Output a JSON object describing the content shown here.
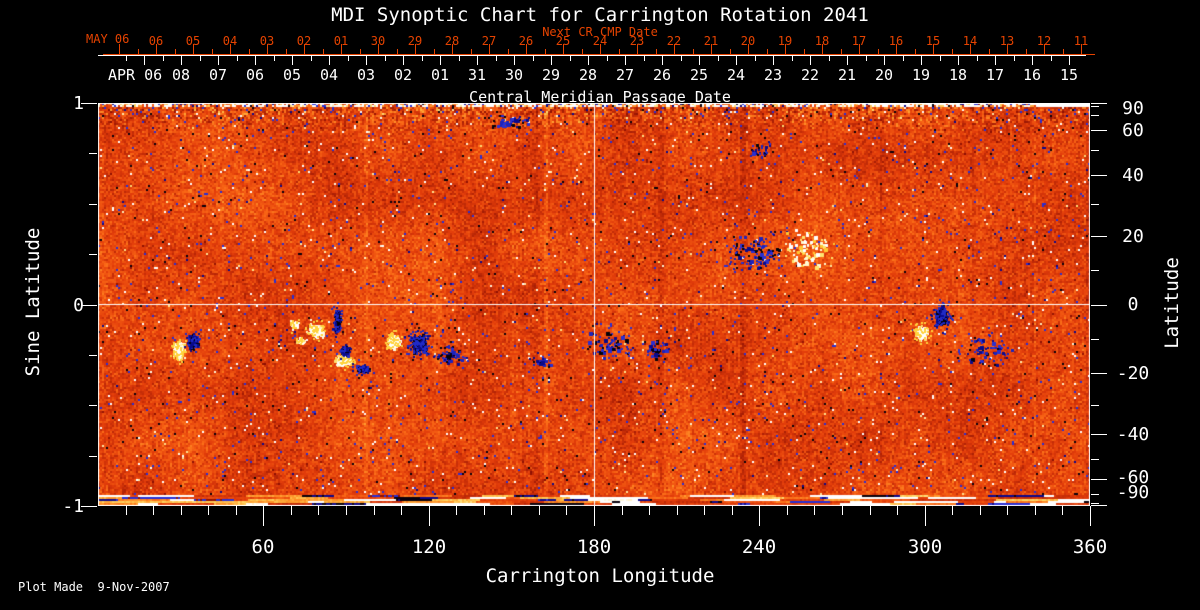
{
  "title": "MDI Synoptic Chart for Carrington Rotation 2041",
  "footer": {
    "plot_made": "Plot Made  9-Nov-2007"
  },
  "colors": {
    "background": "#000000",
    "axis_white": "#ffffff",
    "axis_red": "#e64300"
  },
  "next_cr_axis": {
    "label": "Next CR CMP Date",
    "month_label": "MAY 06",
    "days": [
      "06",
      "05",
      "04",
      "03",
      "02",
      "01",
      "30",
      "29",
      "28",
      "27",
      "26",
      "25",
      "24",
      "23",
      "22",
      "21",
      "20",
      "19",
      "18",
      "17",
      "16",
      "15",
      "14",
      "13",
      "12",
      "11"
    ]
  },
  "cmp_axis": {
    "label": "Central Meridian Passage Date",
    "month_label": "APR 06",
    "days": [
      "08",
      "07",
      "06",
      "05",
      "04",
      "03",
      "02",
      "01",
      "31",
      "30",
      "29",
      "28",
      "27",
      "26",
      "25",
      "24",
      "23",
      "22",
      "21",
      "20",
      "19",
      "18",
      "17",
      "16",
      "15"
    ]
  },
  "left_axis": {
    "label": "Sine Latitude",
    "ticks": [
      "1",
      "0",
      "-1"
    ]
  },
  "right_axis": {
    "label": "Latitude",
    "ticks": [
      "90",
      "60",
      "40",
      "20",
      "0",
      "-20",
      "-40",
      "-60",
      "-90"
    ]
  },
  "bottom_axis": {
    "label": "Carrington Longitude",
    "ticks": [
      "60",
      "120",
      "180",
      "240",
      "300",
      "360"
    ]
  },
  "chart_data": {
    "type": "heatmap",
    "title": "MDI Synoptic Chart for Carrington Rotation 2041",
    "xlabel": "Carrington Longitude",
    "x_range": [
      0,
      360
    ],
    "x_major_ticks": [
      60,
      120,
      180,
      240,
      300,
      360
    ],
    "x_minor_step_deg": 10,
    "ylabel_left": "Sine Latitude",
    "y_range_sine": [
      -1,
      1
    ],
    "sine_major_ticks": [
      1,
      0,
      -1
    ],
    "sine_minor_step": 0.25,
    "ylabel_right": "Latitude",
    "lat_major_ticks": [
      90,
      60,
      40,
      20,
      0,
      -20,
      -40,
      -60,
      -90
    ],
    "lat_minor_ticks": [
      80,
      70,
      50,
      30,
      10,
      -10,
      -30,
      -50,
      -70,
      -80
    ],
    "grid_lines": {
      "longitude_deg": 180,
      "sine_latitude": 0
    },
    "legend": "none",
    "description": "Full-surface MDI magnetogram synoptic map: quiet-sun salt-and-pepper field in red-orange, negative polarity in blue/black, positive polarity in yellow/white; noisy polar band at top and streaky data edge at bottom.",
    "palette": {
      "quiet": [
        "#8a0e02",
        "#e2440c",
        "#fa6816",
        "#ffa030"
      ],
      "positive": [
        "#ffd23c",
        "#ffe68a",
        "#ffffff"
      ],
      "negative": [
        "#2830d0",
        "#0a0a8a",
        "#000000"
      ]
    },
    "active_regions": [
      {
        "form": "blob",
        "polarity": 1,
        "lon": 29.0,
        "sin_lat": -0.221,
        "size": [
          7,
          11
        ]
      },
      {
        "form": "blob",
        "polarity": -1,
        "lon": 34.1,
        "sin_lat": -0.181,
        "size": [
          6,
          8
        ]
      },
      {
        "form": "blob",
        "polarity": 1,
        "lon": 71.1,
        "sin_lat": -0.097,
        "size": [
          5,
          5
        ]
      },
      {
        "form": "blob",
        "polarity": 1,
        "lon": 73.3,
        "sin_lat": -0.176,
        "size": [
          4,
          4
        ]
      },
      {
        "form": "blob",
        "polarity": 1,
        "lon": 78.8,
        "sin_lat": -0.127,
        "size": [
          9,
          8
        ]
      },
      {
        "form": "blob",
        "polarity": -1,
        "lon": 86.4,
        "sin_lat": -0.077,
        "size": [
          4,
          13
        ]
      },
      {
        "form": "blob",
        "polarity": 1,
        "lon": 88.5,
        "sin_lat": -0.275,
        "size": [
          9,
          7
        ]
      },
      {
        "form": "blob",
        "polarity": -1,
        "lon": 89.3,
        "sin_lat": -0.226,
        "size": [
          5,
          6
        ]
      },
      {
        "form": "blob",
        "polarity": -1,
        "lon": 95.8,
        "sin_lat": -0.315,
        "size": [
          9,
          4
        ]
      },
      {
        "form": "blob",
        "polarity": 1,
        "lon": 107.1,
        "sin_lat": -0.181,
        "size": [
          8,
          9
        ]
      },
      {
        "form": "blob",
        "polarity": -1,
        "lon": 116.5,
        "sin_lat": -0.191,
        "size": [
          10,
          11
        ]
      },
      {
        "form": "cluster",
        "polarity": -1,
        "lon": 127.7,
        "sin_lat": -0.251,
        "size": [
          18,
          12
        ],
        "count": 60
      },
      {
        "form": "cluster",
        "polarity": -1,
        "lon": 149.5,
        "sin_lat": 0.916,
        "size": [
          20,
          8
        ],
        "count": 45
      },
      {
        "form": "cluster",
        "polarity": -1,
        "lon": 160.4,
        "sin_lat": -0.275,
        "size": [
          12,
          8
        ],
        "count": 25
      },
      {
        "form": "cluster",
        "polarity": -1,
        "lon": 185.8,
        "sin_lat": -0.201,
        "size": [
          25,
          15
        ],
        "count": 70
      },
      {
        "form": "cluster",
        "polarity": -1,
        "lon": 202.1,
        "sin_lat": -0.226,
        "size": [
          15,
          12
        ],
        "count": 40
      },
      {
        "form": "cluster",
        "polarity": -1,
        "lon": 238.4,
        "sin_lat": 0.256,
        "size": [
          30,
          22
        ],
        "count": 110
      },
      {
        "form": "cluster",
        "polarity": -1,
        "lon": 240.3,
        "sin_lat": 0.764,
        "size": [
          15,
          10
        ],
        "count": 30
      },
      {
        "form": "cluster",
        "polarity": 1,
        "lon": 257.6,
        "sin_lat": 0.28,
        "size": [
          28,
          20
        ],
        "count": 90
      },
      {
        "form": "blob",
        "polarity": 1,
        "lon": 298.6,
        "sin_lat": -0.136,
        "size": [
          9,
          8
        ]
      },
      {
        "form": "blob",
        "polarity": -1,
        "lon": 305.9,
        "sin_lat": -0.052,
        "size": [
          7,
          12
        ]
      },
      {
        "form": "cluster",
        "polarity": -1,
        "lon": 321.8,
        "sin_lat": -0.226,
        "size": [
          30,
          20
        ],
        "count": 70
      }
    ]
  }
}
